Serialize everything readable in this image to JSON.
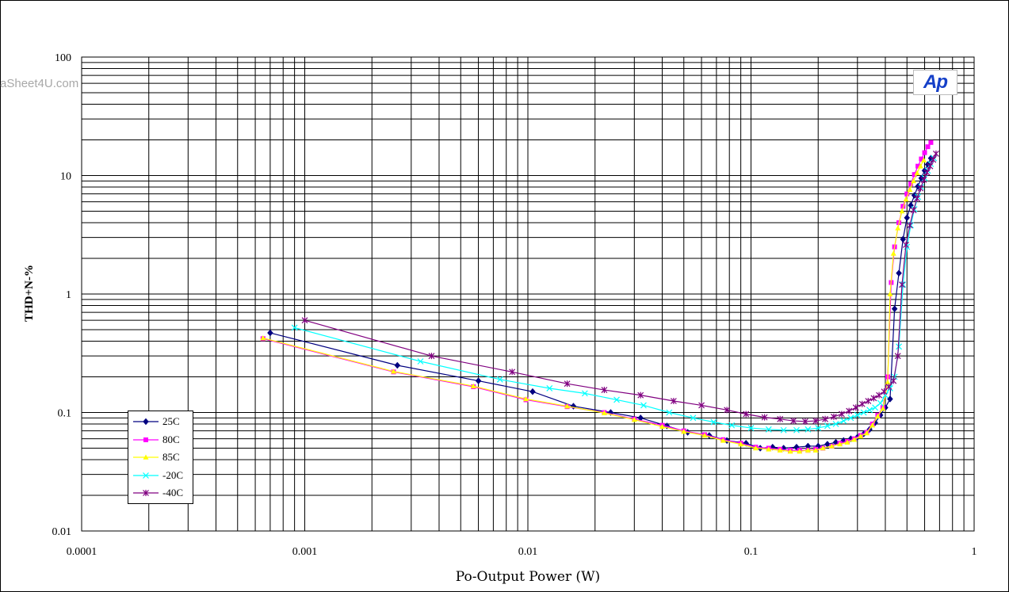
{
  "watermark": "aSheet4U.com",
  "logo_text": "Ap",
  "chart_data": {
    "type": "line",
    "xlabel": "Po-Output Power (W)",
    "ylabel": "THD+N-%",
    "x_scale": "log",
    "y_scale": "log",
    "xlim": [
      0.0001,
      1
    ],
    "ylim": [
      0.01,
      100
    ],
    "x_tick_labels": [
      "0.0001",
      "0.001",
      "0.01",
      "0.1",
      "1"
    ],
    "y_tick_labels": [
      "100",
      "10",
      "1",
      "0.1",
      "0.01"
    ],
    "grid": true,
    "legend_position": "bottom-left",
    "series": [
      {
        "name": "25C",
        "color": "#000080",
        "marker": "diamond",
        "points": [
          [
            0.0007,
            0.47
          ],
          [
            0.0026,
            0.25
          ],
          [
            0.006,
            0.185
          ],
          [
            0.0105,
            0.15
          ],
          [
            0.016,
            0.113
          ],
          [
            0.0235,
            0.1
          ],
          [
            0.032,
            0.09
          ],
          [
            0.042,
            0.077
          ],
          [
            0.052,
            0.068
          ],
          [
            0.065,
            0.064
          ],
          [
            0.078,
            0.058
          ],
          [
            0.095,
            0.055
          ],
          [
            0.11,
            0.05
          ],
          [
            0.125,
            0.051
          ],
          [
            0.14,
            0.05
          ],
          [
            0.16,
            0.051
          ],
          [
            0.18,
            0.052
          ],
          [
            0.2,
            0.052
          ],
          [
            0.22,
            0.054
          ],
          [
            0.24,
            0.056
          ],
          [
            0.26,
            0.058
          ],
          [
            0.28,
            0.06
          ],
          [
            0.3,
            0.062
          ],
          [
            0.32,
            0.066
          ],
          [
            0.34,
            0.072
          ],
          [
            0.36,
            0.082
          ],
          [
            0.38,
            0.095
          ],
          [
            0.4,
            0.11
          ],
          [
            0.42,
            0.13
          ],
          [
            0.44,
            0.75
          ],
          [
            0.46,
            1.5
          ],
          [
            0.48,
            2.9
          ],
          [
            0.5,
            4.4
          ],
          [
            0.52,
            5.6
          ],
          [
            0.54,
            6.8
          ],
          [
            0.56,
            8.1
          ],
          [
            0.58,
            9.5
          ],
          [
            0.6,
            11
          ],
          [
            0.62,
            12.4
          ],
          [
            0.64,
            14
          ]
        ]
      },
      {
        "name": "80C",
        "color": "#ff00ff",
        "marker": "square",
        "points": [
          [
            0.00065,
            0.42
          ],
          [
            0.0025,
            0.22
          ],
          [
            0.0057,
            0.165
          ],
          [
            0.0098,
            0.128
          ],
          [
            0.015,
            0.112
          ],
          [
            0.022,
            0.1
          ],
          [
            0.03,
            0.088
          ],
          [
            0.04,
            0.078
          ],
          [
            0.05,
            0.07
          ],
          [
            0.062,
            0.065
          ],
          [
            0.075,
            0.059
          ],
          [
            0.09,
            0.055
          ],
          [
            0.105,
            0.051
          ],
          [
            0.12,
            0.05
          ],
          [
            0.135,
            0.049
          ],
          [
            0.15,
            0.048
          ],
          [
            0.165,
            0.048
          ],
          [
            0.18,
            0.048
          ],
          [
            0.195,
            0.049
          ],
          [
            0.21,
            0.05
          ],
          [
            0.23,
            0.052
          ],
          [
            0.25,
            0.055
          ],
          [
            0.27,
            0.057
          ],
          [
            0.29,
            0.06
          ],
          [
            0.31,
            0.064
          ],
          [
            0.33,
            0.068
          ],
          [
            0.35,
            0.08
          ],
          [
            0.37,
            0.095
          ],
          [
            0.39,
            0.11
          ],
          [
            0.41,
            0.2
          ],
          [
            0.425,
            1.25
          ],
          [
            0.44,
            2.5
          ],
          [
            0.46,
            4
          ],
          [
            0.48,
            5.5
          ],
          [
            0.5,
            7
          ],
          [
            0.52,
            8.5
          ],
          [
            0.54,
            10.2
          ],
          [
            0.56,
            12
          ],
          [
            0.58,
            13.8
          ],
          [
            0.6,
            15.6
          ],
          [
            0.62,
            17.5
          ],
          [
            0.64,
            19
          ]
        ]
      },
      {
        "name": "85C",
        "color": "#ffff00",
        "marker": "triangle",
        "points": [
          [
            0.00065,
            0.425
          ],
          [
            0.0025,
            0.222
          ],
          [
            0.0057,
            0.167
          ],
          [
            0.0098,
            0.13
          ],
          [
            0.015,
            0.113
          ],
          [
            0.022,
            0.099
          ],
          [
            0.03,
            0.087
          ],
          [
            0.04,
            0.076
          ],
          [
            0.05,
            0.069
          ],
          [
            0.062,
            0.064
          ],
          [
            0.075,
            0.058
          ],
          [
            0.09,
            0.054
          ],
          [
            0.105,
            0.05
          ],
          [
            0.12,
            0.049
          ],
          [
            0.135,
            0.048
          ],
          [
            0.15,
            0.047
          ],
          [
            0.165,
            0.047
          ],
          [
            0.18,
            0.048
          ],
          [
            0.195,
            0.048
          ],
          [
            0.21,
            0.05
          ],
          [
            0.23,
            0.052
          ],
          [
            0.25,
            0.054
          ],
          [
            0.27,
            0.056
          ],
          [
            0.29,
            0.059
          ],
          [
            0.31,
            0.063
          ],
          [
            0.33,
            0.067
          ],
          [
            0.35,
            0.078
          ],
          [
            0.37,
            0.093
          ],
          [
            0.39,
            0.108
          ],
          [
            0.41,
            0.18
          ],
          [
            0.42,
            1.0
          ],
          [
            0.435,
            2.2
          ],
          [
            0.455,
            3.6
          ],
          [
            0.475,
            5
          ],
          [
            0.495,
            6.3
          ],
          [
            0.515,
            7.6
          ],
          [
            0.535,
            9
          ],
          [
            0.555,
            10.5
          ],
          [
            0.575,
            12
          ],
          [
            0.595,
            13.5
          ]
        ]
      },
      {
        "name": "-20C",
        "color": "#00ffff",
        "marker": "x",
        "points": [
          [
            0.0009,
            0.52
          ],
          [
            0.0033,
            0.27
          ],
          [
            0.0075,
            0.19
          ],
          [
            0.0125,
            0.16
          ],
          [
            0.018,
            0.145
          ],
          [
            0.025,
            0.128
          ],
          [
            0.033,
            0.115
          ],
          [
            0.043,
            0.1
          ],
          [
            0.055,
            0.09
          ],
          [
            0.068,
            0.083
          ],
          [
            0.082,
            0.078
          ],
          [
            0.1,
            0.074
          ],
          [
            0.12,
            0.072
          ],
          [
            0.14,
            0.071
          ],
          [
            0.16,
            0.071
          ],
          [
            0.18,
            0.072
          ],
          [
            0.2,
            0.074
          ],
          [
            0.22,
            0.077
          ],
          [
            0.24,
            0.08
          ],
          [
            0.26,
            0.085
          ],
          [
            0.28,
            0.09
          ],
          [
            0.3,
            0.095
          ],
          [
            0.32,
            0.1
          ],
          [
            0.34,
            0.105
          ],
          [
            0.36,
            0.11
          ],
          [
            0.38,
            0.12
          ],
          [
            0.4,
            0.14
          ],
          [
            0.42,
            0.16
          ],
          [
            0.44,
            0.2
          ],
          [
            0.46,
            0.36
          ],
          [
            0.48,
            1.2
          ],
          [
            0.5,
            2.5
          ],
          [
            0.52,
            3.8
          ],
          [
            0.54,
            5.2
          ],
          [
            0.56,
            6.6
          ],
          [
            0.58,
            8
          ],
          [
            0.6,
            9.5
          ],
          [
            0.62,
            11
          ],
          [
            0.64,
            12.5
          ],
          [
            0.66,
            14
          ]
        ]
      },
      {
        "name": "-40C",
        "color": "#800080",
        "marker": "asterisk",
        "points": [
          [
            0.001,
            0.6
          ],
          [
            0.0037,
            0.3
          ],
          [
            0.0085,
            0.22
          ],
          [
            0.015,
            0.175
          ],
          [
            0.022,
            0.155
          ],
          [
            0.032,
            0.14
          ],
          [
            0.045,
            0.125
          ],
          [
            0.06,
            0.115
          ],
          [
            0.078,
            0.105
          ],
          [
            0.095,
            0.097
          ],
          [
            0.115,
            0.091
          ],
          [
            0.135,
            0.088
          ],
          [
            0.155,
            0.085
          ],
          [
            0.175,
            0.084
          ],
          [
            0.195,
            0.085
          ],
          [
            0.215,
            0.088
          ],
          [
            0.235,
            0.092
          ],
          [
            0.255,
            0.097
          ],
          [
            0.275,
            0.103
          ],
          [
            0.295,
            0.11
          ],
          [
            0.315,
            0.118
          ],
          [
            0.335,
            0.125
          ],
          [
            0.355,
            0.132
          ],
          [
            0.375,
            0.14
          ],
          [
            0.395,
            0.15
          ],
          [
            0.415,
            0.165
          ],
          [
            0.435,
            0.185
          ],
          [
            0.455,
            0.3
          ],
          [
            0.475,
            1.2
          ],
          [
            0.495,
            2.6
          ],
          [
            0.515,
            3.8
          ],
          [
            0.535,
            5.1
          ],
          [
            0.555,
            6.4
          ],
          [
            0.575,
            7.8
          ],
          [
            0.595,
            9.2
          ],
          [
            0.615,
            10.6
          ],
          [
            0.635,
            12
          ],
          [
            0.655,
            13.6
          ],
          [
            0.675,
            15.3
          ]
        ]
      }
    ]
  }
}
